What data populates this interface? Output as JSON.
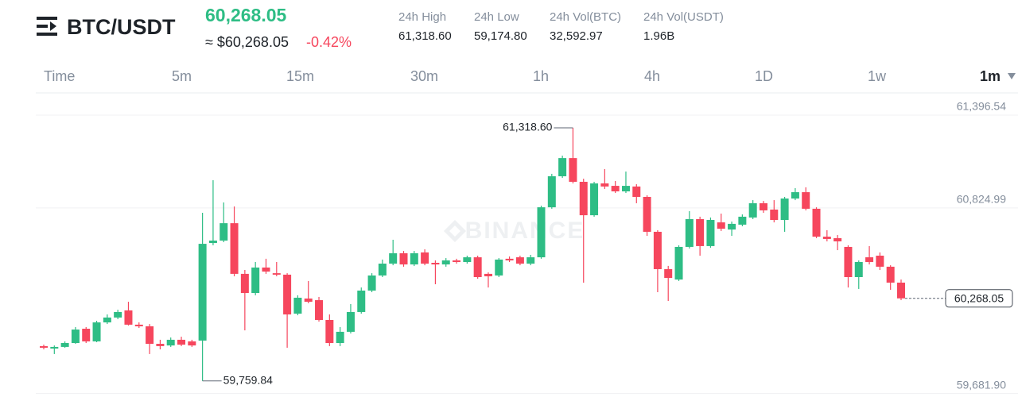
{
  "header": {
    "symbol": "BTC/USDT",
    "price": "60,268.05",
    "fiat_price": "≈ $60,268.05",
    "change": "-0.42%",
    "stats": [
      {
        "label": "24h High",
        "value": "61,318.60"
      },
      {
        "label": "24h Low",
        "value": "59,174.80"
      },
      {
        "label": "24h Vol(BTC)",
        "value": "32,592.97"
      },
      {
        "label": "24h Vol(USDT)",
        "value": "1.96B"
      }
    ]
  },
  "tabs": [
    "Time",
    "5m",
    "15m",
    "30m",
    "1h",
    "4h",
    "1D",
    "1w",
    "1m"
  ],
  "selected_tab": "1m",
  "chart_data": {
    "type": "candlestick",
    "watermark": "BINANCE",
    "up_color": "#2ebd85",
    "down_color": "#f6465d",
    "open": [
      59974,
      59959,
      59969,
      59993,
      60081,
      60003,
      60120,
      60150,
      60194,
      60106,
      60096,
      59988,
      59978,
      60013,
      60003,
      60008,
      60609,
      60624,
      60731,
      60419,
      60301,
      60458,
      60423,
      60414,
      60174,
      60267,
      60257,
      60135,
      59993,
      60062,
      60184,
      60316,
      60409,
      60482,
      60546,
      60477,
      60551,
      60487,
      60477,
      60502,
      60492,
      60521,
      60419,
      60409,
      60512,
      60521,
      60482,
      60521,
      60829,
      61020,
      61132,
      60986,
      60780,
      60976,
      60961,
      60927,
      60957,
      60893,
      60678,
      60448,
      60384,
      60585,
      60756,
      60590,
      60736,
      60692,
      60722,
      60766,
      60854,
      60815,
      60751,
      60883,
      60922,
      60820,
      60648,
      60639,
      60585,
      60399,
      60521,
      60531,
      60463,
      60365
    ],
    "high": [
      59983,
      59978,
      60003,
      60091,
      60091,
      60130,
      60169,
      60198,
      60247,
      60120,
      60110,
      60013,
      60027,
      60032,
      60013,
      60795,
      60996,
      60859,
      60834,
      60443,
      60492,
      60512,
      60492,
      60423,
      60287,
      60375,
      60277,
      60169,
      60091,
      60233,
      60335,
      60423,
      60507,
      60629,
      60560,
      60560,
      60570,
      60502,
      60516,
      60512,
      60531,
      60531,
      60428,
      60516,
      60526,
      60531,
      60536,
      60839,
      61035,
      61147,
      61318.6,
      61005,
      60986,
      61064,
      60991,
      61049,
      60971,
      60903,
      60688,
      60468,
      60595,
      60805,
      60771,
      60766,
      60790,
      60741,
      60785,
      60873,
      60868,
      60873,
      60893,
      60947,
      60952,
      60829,
      60688,
      60658,
      60595,
      60502,
      60590,
      60551,
      60472,
      60384
    ],
    "low": [
      59954,
      59925,
      59964,
      59988,
      59993,
      59998,
      60110,
      60140,
      60101,
      60086,
      59925,
      59954,
      59969,
      59974,
      59969,
      59759.84,
      60595,
      60614,
      60404,
      60071,
      60287,
      60419,
      60404,
      59964,
      60164,
      60238,
      60125,
      59974,
      59974,
      60052,
      60174,
      60306,
      60399,
      60472,
      60463,
      60467,
      60472,
      60355,
      60463,
      60482,
      60482,
      60389,
      60335,
      60399,
      60492,
      60472,
      60472,
      60512,
      60820,
      61010,
      60976,
      60365,
      60771,
      60942,
      60917,
      60917,
      60854,
      60653,
      60306,
      60252,
      60375,
      60575,
      60531,
      60580,
      60683,
      60653,
      60712,
      60756,
      60795,
      60736,
      60678,
      60873,
      60810,
      60639,
      60619,
      60565,
      60335,
      60326,
      60477,
      60443,
      60321,
      60257
    ],
    "close": [
      59964,
      59969,
      59993,
      60076,
      60003,
      60120,
      60150,
      60184,
      60106,
      60096,
      59988,
      59974,
      60013,
      59983,
      59978,
      60604,
      60624,
      60731,
      60419,
      60301,
      60458,
      60433,
      60414,
      60169,
      60272,
      60247,
      60135,
      59993,
      60062,
      60184,
      60316,
      60409,
      60482,
      60546,
      60477,
      60546,
      60482,
      60477,
      60502,
      60492,
      60521,
      60399,
      60404,
      60507,
      60502,
      60482,
      60521,
      60829,
      61020,
      61132,
      60986,
      60780,
      60976,
      60957,
      60927,
      60961,
      60893,
      60678,
      60448,
      60394,
      60585,
      60756,
      60590,
      60751,
      60697,
      60727,
      60771,
      60854,
      60810,
      60751,
      60883,
      60922,
      60820,
      60648,
      60634,
      60619,
      60399,
      60492,
      60492,
      60463,
      60365,
      60268.05
    ],
    "ylim": [
      59685,
      61533.5
    ],
    "yticks": [
      {
        "value": 61396.54,
        "label": "61,396.54"
      },
      {
        "value": 60824.99,
        "label": "60,824.99"
      },
      {
        "value": 59681.9,
        "label": "59,681.90"
      }
    ],
    "grid": true,
    "max_label": {
      "value": 61318.6,
      "label": "61,318.60"
    },
    "min_label": {
      "value": 59759.84,
      "label": "59,759.84"
    },
    "last_label": {
      "value": 60268.05,
      "label": "60,268.05"
    }
  }
}
